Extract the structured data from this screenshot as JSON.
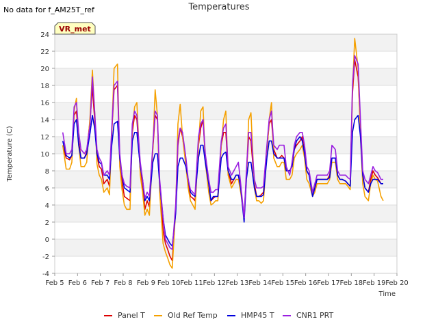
{
  "header": {
    "no_data_text": "No data for f_AM25T_ref",
    "badge_text": "VR_met"
  },
  "chart_data": {
    "type": "line",
    "title": "Temperatures",
    "xlabel": "Time",
    "ylabel": "Temperature (C)",
    "xlim": [
      5,
      20
    ],
    "ylim": [
      -4,
      24
    ],
    "x_ticks": [
      5,
      6,
      7,
      8,
      9,
      10,
      11,
      12,
      13,
      14,
      15,
      16,
      17,
      18,
      19,
      20
    ],
    "x_tick_labels": [
      "Feb 5",
      "Feb 6",
      "Feb 7",
      "Feb 8",
      "Feb 9",
      "Feb 10",
      "Feb 11",
      "Feb 12",
      "Feb 13",
      "Feb 14",
      "Feb 15",
      "Feb 16",
      "Feb 17",
      "Feb 18",
      "Feb 19",
      "Feb 20"
    ],
    "y_ticks": [
      -4,
      -2,
      0,
      2,
      4,
      6,
      8,
      10,
      12,
      14,
      16,
      18,
      20,
      22,
      24
    ],
    "grid": "horizontal bands",
    "legend_position": "bottom",
    "series": [
      {
        "name": "Panel T",
        "color": "#dd0000",
        "x": [
          5.35,
          5.5,
          5.65,
          5.75,
          5.85,
          5.95,
          6.05,
          6.15,
          6.3,
          6.4,
          6.55,
          6.65,
          6.75,
          6.85,
          6.95,
          7.05,
          7.15,
          7.3,
          7.4,
          7.5,
          7.6,
          7.75,
          7.85,
          7.95,
          8.05,
          8.15,
          8.3,
          8.4,
          8.5,
          8.6,
          8.75,
          8.85,
          8.95,
          9.05,
          9.15,
          9.3,
          9.4,
          9.5,
          9.6,
          9.75,
          9.85,
          9.95,
          10.05,
          10.15,
          10.3,
          10.4,
          10.5,
          10.6,
          10.75,
          10.85,
          10.95,
          11.05,
          11.15,
          11.3,
          11.4,
          11.5,
          11.6,
          11.75,
          11.85,
          11.95,
          12.05,
          12.15,
          12.3,
          12.4,
          12.5,
          12.6,
          12.75,
          12.85,
          12.95,
          13.05,
          13.15,
          13.3,
          13.4,
          13.5,
          13.6,
          13.75,
          13.85,
          13.95,
          14.05,
          14.15,
          14.3,
          14.4,
          14.5,
          14.6,
          14.75,
          14.85,
          14.95,
          15.05,
          15.15,
          15.3,
          15.4,
          15.5,
          15.6,
          15.75,
          15.85,
          15.95,
          16.05,
          16.15,
          16.3,
          16.4,
          16.5,
          16.6,
          16.75,
          16.85,
          16.95,
          17.05,
          17.15,
          17.3,
          17.4,
          17.5,
          17.6,
          17.75,
          17.85,
          17.95,
          18.05,
          18.15,
          18.3,
          18.4,
          18.5,
          18.6,
          18.75,
          18.85,
          18.95,
          19.05,
          19.15,
          19.3,
          19.4
        ],
        "y": [
          11,
          9.5,
          9.3,
          9.8,
          14.5,
          15,
          11.5,
          9.5,
          9.5,
          10.2,
          14,
          17.8,
          14,
          9.8,
          8.5,
          8.2,
          6.5,
          7,
          6.2,
          12.5,
          17.5,
          18,
          9,
          6.8,
          5,
          4.8,
          4.5,
          12.5,
          14.5,
          14,
          8,
          6.5,
          3.5,
          4.5,
          3.8,
          10.5,
          14.5,
          14,
          6.5,
          1,
          -0.5,
          -1.2,
          -2,
          -2.5,
          3.5,
          11,
          13,
          12,
          9,
          6.5,
          5,
          4.8,
          4.5,
          11,
          13,
          14,
          9.5,
          6,
          4.5,
          4.8,
          5,
          5,
          11,
          12.5,
          12.5,
          8,
          6.5,
          7,
          7.5,
          7.5,
          6,
          2.5,
          7.5,
          12,
          11.5,
          6.5,
          5,
          5,
          5.2,
          5.5,
          10.5,
          13.5,
          14,
          10.5,
          9.5,
          9.5,
          9.8,
          9.5,
          8,
          8,
          8.5,
          10.5,
          11,
          11.5,
          12,
          10,
          8,
          7.5,
          5.5,
          6,
          7,
          7,
          7,
          7,
          7,
          7.5,
          9.5,
          9.5,
          7.5,
          7,
          7,
          6.8,
          6.5,
          6.2,
          17,
          21,
          19,
          13,
          7.5,
          6,
          5.5,
          7,
          8,
          7.5,
          7.2,
          6.5,
          6.5
        ],
        "x_extra": [
          19.3,
          19.4
        ],
        "y_extra": [
          6,
          5.5
        ]
      },
      {
        "name": "Old Ref Temp",
        "color": "#f5a000",
        "x": [
          5.35,
          5.5,
          5.65,
          5.75,
          5.85,
          5.95,
          6.05,
          6.15,
          6.3,
          6.4,
          6.55,
          6.65,
          6.75,
          6.85,
          6.95,
          7.05,
          7.15,
          7.3,
          7.4,
          7.5,
          7.6,
          7.75,
          7.85,
          7.95,
          8.05,
          8.15,
          8.3,
          8.4,
          8.5,
          8.6,
          8.75,
          8.85,
          8.95,
          9.05,
          9.15,
          9.3,
          9.4,
          9.5,
          9.6,
          9.75,
          9.85,
          9.95,
          10.05,
          10.15,
          10.3,
          10.4,
          10.5,
          10.6,
          10.75,
          10.85,
          10.95,
          11.05,
          11.15,
          11.3,
          11.4,
          11.5,
          11.6,
          11.75,
          11.85,
          11.95,
          12.05,
          12.15,
          12.3,
          12.4,
          12.5,
          12.6,
          12.75,
          12.85,
          12.95,
          13.05,
          13.15,
          13.3,
          13.4,
          13.5,
          13.6,
          13.75,
          13.85,
          13.95,
          14.05,
          14.15,
          14.3,
          14.4,
          14.5,
          14.6,
          14.75,
          14.85,
          14.95,
          15.05,
          15.15,
          15.3,
          15.4,
          15.5,
          15.6,
          15.75,
          15.85,
          15.95,
          16.05,
          16.15,
          16.3,
          16.4,
          16.5,
          16.6,
          16.75,
          16.85,
          16.95,
          17.05,
          17.15,
          17.3,
          17.4,
          17.5,
          17.6,
          17.75,
          17.85,
          17.95,
          18.05,
          18.15,
          18.3,
          18.4,
          18.5,
          18.6,
          18.75,
          18.85,
          18.95,
          19.05,
          19.15,
          19.3,
          19.4
        ],
        "y": [
          11,
          8.2,
          8.2,
          9,
          15,
          16.5,
          11,
          8.5,
          8.5,
          9,
          14.5,
          19.8,
          15,
          8.8,
          7.5,
          7,
          5.5,
          6,
          5.2,
          12.5,
          20,
          20.5,
          8.5,
          5.8,
          4,
          3.5,
          3.5,
          13,
          15.5,
          16,
          7.5,
          5.5,
          2.8,
          3.5,
          2.8,
          10.5,
          17.5,
          14.5,
          5.5,
          -0.5,
          -1.5,
          -2.2,
          -3,
          -3.4,
          3.5,
          13.5,
          15.8,
          12,
          8.5,
          6,
          4.5,
          4,
          3.5,
          11,
          15,
          15.5,
          9,
          5.5,
          4,
          4.2,
          4.5,
          4.5,
          11,
          14,
          15,
          7.5,
          6,
          6.5,
          7,
          7,
          5.5,
          2.5,
          7,
          14,
          14.8,
          6,
          4.5,
          4.5,
          4.2,
          4.5,
          10,
          14,
          16,
          9.5,
          8.5,
          8.5,
          9,
          9,
          7,
          7,
          7.5,
          9.5,
          10,
          10.5,
          11,
          9.5,
          7,
          6.5,
          5,
          5.5,
          6.5,
          6.5,
          6.5,
          6.5,
          6.5,
          7,
          9,
          9,
          7,
          6.5,
          6.5,
          6.5,
          6.2,
          5.8,
          17.5,
          23.5,
          20,
          12,
          6.5,
          5,
          4.5,
          6.5,
          7.5,
          7,
          6.8,
          5,
          4.5
        ],
        "x_extra": [],
        "y_extra": []
      },
      {
        "name": "HMP45 T",
        "color": "#0000dd",
        "x": [
          5.35,
          5.5,
          5.65,
          5.75,
          5.85,
          5.95,
          6.05,
          6.15,
          6.3,
          6.4,
          6.55,
          6.65,
          6.75,
          6.85,
          6.95,
          7.05,
          7.15,
          7.3,
          7.4,
          7.5,
          7.6,
          7.75,
          7.85,
          7.95,
          8.05,
          8.15,
          8.3,
          8.4,
          8.5,
          8.6,
          8.75,
          8.85,
          8.95,
          9.05,
          9.15,
          9.3,
          9.4,
          9.5,
          9.6,
          9.75,
          9.85,
          9.95,
          10.05,
          10.15,
          10.3,
          10.4,
          10.5,
          10.6,
          10.75,
          10.85,
          10.95,
          11.05,
          11.15,
          11.3,
          11.4,
          11.5,
          11.6,
          11.75,
          11.85,
          11.95,
          12.05,
          12.15,
          12.3,
          12.4,
          12.5,
          12.6,
          12.75,
          12.85,
          12.95,
          13.05,
          13.15,
          13.3,
          13.4,
          13.5,
          13.6,
          13.75,
          13.85,
          13.95,
          14.05,
          14.15,
          14.3,
          14.4,
          14.5,
          14.6,
          14.75,
          14.85,
          14.95,
          15.05,
          15.15,
          15.3,
          15.4,
          15.5,
          15.6,
          15.75,
          15.85,
          15.95,
          16.05,
          16.15,
          16.3,
          16.4,
          16.5,
          16.6,
          16.75,
          16.85,
          16.95,
          17.05,
          17.15,
          17.3,
          17.4,
          17.5,
          17.6,
          17.75,
          17.85,
          17.95,
          18.05,
          18.15,
          18.3,
          18.4,
          18.5,
          18.6,
          18.75,
          18.85,
          18.95,
          19.05,
          19.15,
          19.3,
          19.4
        ],
        "y": [
          11.5,
          9.8,
          9.5,
          9.8,
          13.5,
          14,
          11,
          9.5,
          9.5,
          10,
          12.5,
          14.5,
          13,
          10,
          9,
          8.8,
          7.5,
          7.5,
          7,
          11,
          13.5,
          13.8,
          9.5,
          7.5,
          6,
          5.8,
          5.5,
          11.5,
          12.5,
          12.5,
          8.5,
          7,
          4.5,
          5,
          4.5,
          9,
          10,
          10,
          6.5,
          2.5,
          0.5,
          0,
          -0.5,
          -0.8,
          3,
          8.5,
          9.5,
          9.5,
          8.5,
          7,
          5.5,
          5.2,
          5,
          9.5,
          11,
          11,
          9,
          6.5,
          4.5,
          5,
          5,
          5,
          9.5,
          10,
          10.2,
          8,
          7,
          7,
          7.5,
          7.5,
          6,
          2,
          7,
          9,
          9,
          6,
          5,
          5,
          5,
          5.2,
          9.5,
          11.5,
          11.5,
          10,
          9.5,
          9.5,
          9.5,
          9.5,
          8,
          8,
          8.5,
          10.5,
          11.5,
          12,
          11.5,
          10,
          8,
          7.5,
          5,
          6,
          7,
          7,
          7,
          7,
          7,
          7.2,
          9.5,
          9.5,
          7.5,
          7,
          7,
          6.8,
          6.5,
          6.2,
          12.5,
          14,
          14.5,
          12,
          7.5,
          6,
          5.5,
          6.5,
          7,
          7,
          7,
          6.5,
          6.5
        ],
        "x_extra": [],
        "y_extra": []
      },
      {
        "name": "CNR1 PRT",
        "color": "#9a1fe0",
        "x": [
          5.35,
          5.5,
          5.65,
          5.75,
          5.85,
          5.95,
          6.05,
          6.15,
          6.3,
          6.4,
          6.55,
          6.65,
          6.75,
          6.85,
          6.95,
          7.05,
          7.15,
          7.3,
          7.4,
          7.5,
          7.6,
          7.75,
          7.85,
          7.95,
          8.05,
          8.15,
          8.3,
          8.4,
          8.5,
          8.6,
          8.75,
          8.85,
          8.95,
          9.05,
          9.15,
          9.3,
          9.4,
          9.5,
          9.6,
          9.75,
          9.85,
          9.95,
          10.05,
          10.15,
          10.3,
          10.4,
          10.5,
          10.6,
          10.75,
          10.85,
          10.95,
          11.05,
          11.15,
          11.3,
          11.4,
          11.5,
          11.6,
          11.75,
          11.85,
          11.95,
          12.05,
          12.15,
          12.3,
          12.4,
          12.5,
          12.6,
          12.75,
          12.85,
          12.95,
          13.05,
          13.15,
          13.3,
          13.4,
          13.5,
          13.6,
          13.75,
          13.85,
          13.95,
          14.05,
          14.15,
          14.3,
          14.4,
          14.5,
          14.6,
          14.75,
          14.85,
          14.95,
          15.05,
          15.15,
          15.3,
          15.4,
          15.5,
          15.6,
          15.75,
          15.85,
          15.95,
          16.05,
          16.15,
          16.3,
          16.4,
          16.5,
          16.6,
          16.75,
          16.85,
          16.95,
          17.05,
          17.15,
          17.3,
          17.4,
          17.5,
          17.6,
          17.75,
          17.85,
          17.95,
          18.05,
          18.15,
          18.3,
          18.4,
          18.5,
          18.6,
          18.75,
          18.85,
          18.95,
          19.05,
          19.15,
          19.3,
          19.4
        ],
        "y": [
          12.5,
          10,
          10,
          10.5,
          15.5,
          16,
          12.5,
          10.5,
          10,
          10.5,
          13.5,
          19,
          15,
          10.5,
          9.5,
          9,
          7.5,
          8,
          7.5,
          13,
          18,
          18.5,
          10,
          7.5,
          6.5,
          6.2,
          6,
          13.5,
          15,
          14.5,
          9,
          7,
          4.8,
          5.5,
          5,
          11,
          15,
          14.5,
          7,
          2.5,
          0,
          -0.5,
          -1,
          -1.2,
          4,
          11.5,
          13,
          12.5,
          9.5,
          7,
          5.8,
          5.5,
          5.2,
          12,
          13.5,
          14,
          10,
          7,
          5.5,
          5.5,
          5.8,
          5.8,
          11.5,
          13,
          13.5,
          8.5,
          7.5,
          8,
          8.5,
          9,
          6.5,
          2.5,
          8,
          12.5,
          12.5,
          7,
          6,
          6,
          6,
          6.2,
          11,
          14,
          15,
          11,
          10.5,
          11,
          11,
          11,
          8.5,
          7.5,
          9,
          11,
          12,
          12.5,
          12.5,
          11,
          8.5,
          8,
          5.5,
          6.5,
          7.5,
          7.5,
          7.5,
          7.5,
          7.5,
          8,
          11,
          10.5,
          8,
          7.5,
          7.5,
          7.5,
          7.2,
          7,
          18,
          21.5,
          20.5,
          14,
          8,
          7,
          6.5,
          7.5,
          8.5,
          8,
          7.8,
          7,
          7
        ],
        "x_extra": [],
        "y_extra": []
      }
    ]
  }
}
